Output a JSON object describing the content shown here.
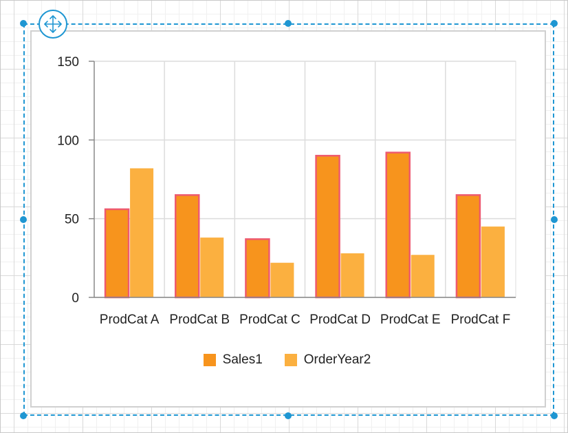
{
  "chart_data": {
    "type": "bar",
    "categories": [
      "ProdCat A",
      "ProdCat B",
      "ProdCat C",
      "ProdCat D",
      "ProdCat E",
      "ProdCat F"
    ],
    "series": [
      {
        "name": "Sales1",
        "values": [
          56,
          65,
          37,
          90,
          92,
          65
        ],
        "color": "#f7941d",
        "stroke": "#ee5a6f"
      },
      {
        "name": "OrderYear2",
        "values": [
          82,
          38,
          22,
          28,
          27,
          45
        ],
        "color": "#fbb040"
      }
    ],
    "ylim": [
      0,
      150
    ],
    "yticks": [
      0,
      50,
      100,
      150
    ],
    "grid": true,
    "legend_position": "bottom"
  },
  "colors": {
    "selection": "#1e96d2",
    "grid": "#dcdcdc",
    "axis": "#888888"
  }
}
